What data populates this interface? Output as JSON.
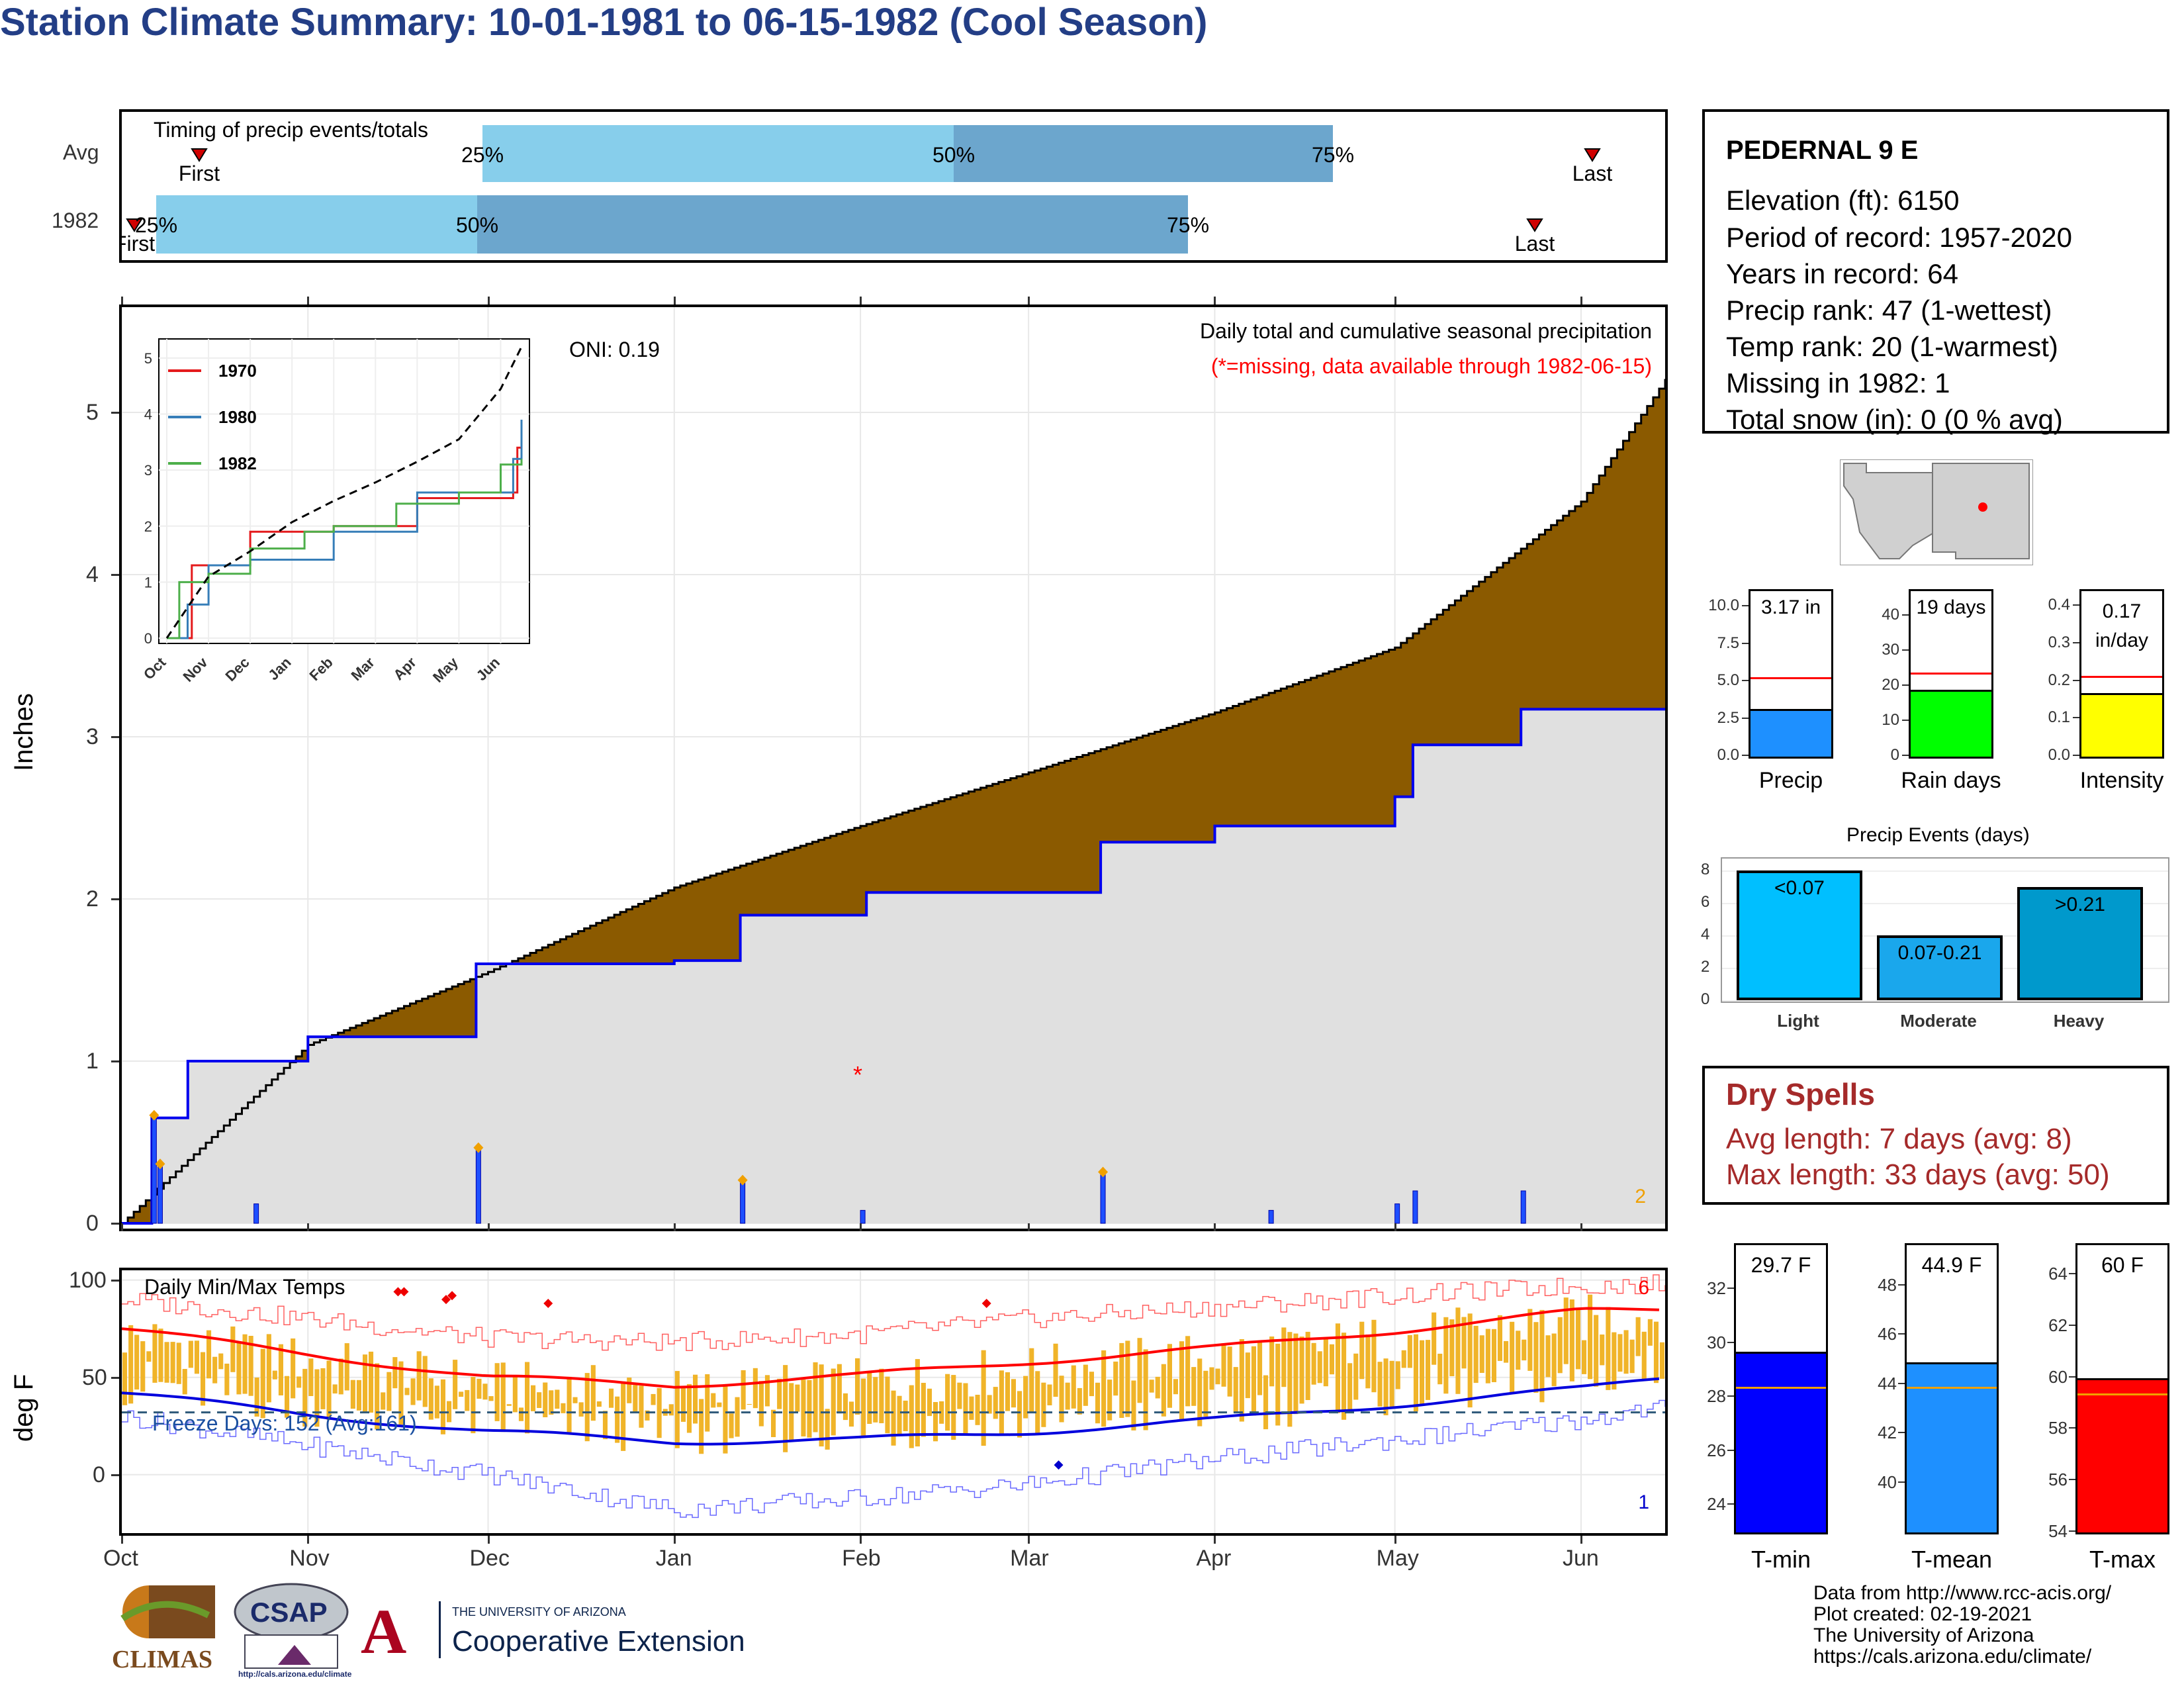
{
  "title": "Station Climate Summary: 10-01-1981 to 06-15-1982 (Cool Season)",
  "timing": {
    "label": "Timing of precip events/totals",
    "rows": [
      "Avg",
      "1982"
    ],
    "avg": {
      "first": "First",
      "last": "Last",
      "p25": "25%",
      "p50": "50%",
      "p75": "75%"
    },
    "y1982": {
      "first": "First",
      "last": "Last",
      "p25": "25%",
      "p50": "50%",
      "p75": "75%"
    }
  },
  "colors": {
    "light_blue": "#87ceeb",
    "mid_blue": "#6ca6cd",
    "brown": "#8b5a00",
    "green": "#008000",
    "gray": "#e0e0e0",
    "orange": "#f0b429",
    "navy": "#233e86",
    "dry_red": "#a52a2a"
  },
  "precip_panel": {
    "ylabel": "Inches",
    "yticks": [
      "0",
      "1",
      "2",
      "3",
      "4",
      "5"
    ],
    "oni": "ONI: 0.19",
    "legend_title": "Daily total and cumulative seasonal precipitation",
    "missing_note": "(*=missing, data available through 1982-06-15)",
    "missing_marker": "*",
    "count_label": "2"
  },
  "inset": {
    "yticks": [
      "0",
      "1",
      "2",
      "3",
      "4",
      "5"
    ],
    "months": [
      "Oct",
      "Nov",
      "Dec",
      "Jan",
      "Feb",
      "Mar",
      "Apr",
      "May",
      "Jun"
    ],
    "legend": [
      {
        "name": "1970",
        "color": "#e41a1c"
      },
      {
        "name": "1980",
        "color": "#377eb8"
      },
      {
        "name": "1982",
        "color": "#4daf4a"
      }
    ]
  },
  "temp_panel": {
    "ylabel": "deg F",
    "label": "Daily Min/Max Temps",
    "freeze": "Freeze Days: 152 (Avg:161)",
    "yticks": [
      "0",
      "50",
      "100"
    ],
    "count_top": "6",
    "count_bottom": "1"
  },
  "months": [
    "Oct",
    "Nov",
    "Dec",
    "Jan",
    "Feb",
    "Mar",
    "Apr",
    "May",
    "Jun"
  ],
  "station": {
    "name": "PEDERNAL 9 E",
    "lines": [
      "Elevation (ft): 6150",
      "Period of record: 1957-2020",
      "Years in record: 64",
      "Precip rank: 47 (1-wettest)",
      "Temp rank: 20 (1-warmest)",
      "Missing in 1982: 1",
      "Total snow (in): 0 (0 % avg)"
    ]
  },
  "mini_bars": [
    {
      "label": "Precip",
      "value_text": "3.17 in",
      "value": 3.17,
      "avg": 5.3,
      "max": 10.8,
      "ticks": [
        "0.0",
        "2.5",
        "5.0",
        "7.5",
        "10.0"
      ],
      "tick_vals": [
        0,
        2.5,
        5,
        7.5,
        10
      ],
      "color": "#1e90ff"
    },
    {
      "label": "Rain days",
      "value_text": "19 days",
      "value": 19,
      "avg": 24,
      "max": 46,
      "ticks": [
        "0",
        "10",
        "20",
        "30",
        "40"
      ],
      "tick_vals": [
        0,
        10,
        20,
        30,
        40
      ],
      "color": "#00ff00"
    },
    {
      "label": "Intensity",
      "value_text": "0.17\nin/day",
      "value_line1": "0.17",
      "value_line2": "in/day",
      "value": 0.17,
      "avg": 0.215,
      "max": 0.43,
      "ticks": [
        "0.0",
        "0.1",
        "0.2",
        "0.3",
        "0.4"
      ],
      "tick_vals": [
        0,
        0.1,
        0.2,
        0.3,
        0.4
      ],
      "color": "#ffff00"
    }
  ],
  "precip_events": {
    "title": "Precip Events (days)",
    "yticks": [
      "0",
      "2",
      "4",
      "6",
      "8"
    ],
    "bars": [
      {
        "label": "Light",
        "range": "<0.07",
        "value": 8,
        "color": "#00bfff"
      },
      {
        "label": "Moderate",
        "range": "0.07-0.21",
        "value": 4,
        "color": "#1aa7ec"
      },
      {
        "label": "Heavy",
        "range": ">0.21",
        "value": 7,
        "color": "#0099cc"
      }
    ]
  },
  "dry_spells": {
    "title": "Dry Spells",
    "avg_length": "Avg length: 7 days (avg: 8)",
    "max_length": "Max length: 33 days (avg: 50)"
  },
  "temp_bars": [
    {
      "label": "T-min",
      "value_text": "29.7 F",
      "value": 29.7,
      "avg": 28.4,
      "min": 23,
      "max": 33.5,
      "ticks": [
        "24",
        "26",
        "28",
        "30",
        "32"
      ],
      "tick_vals": [
        24,
        26,
        28,
        30,
        32
      ],
      "color": "#0000ff"
    },
    {
      "label": "T-mean",
      "value_text": "44.9 F",
      "value": 44.9,
      "avg": 43.9,
      "min": 38,
      "max": 49.5,
      "ticks": [
        "40",
        "42",
        "44",
        "46",
        "48"
      ],
      "tick_vals": [
        40,
        42,
        44,
        46,
        48
      ],
      "color": "#1e90ff"
    },
    {
      "label": "T-max",
      "value_text": "60 F",
      "value": 60.0,
      "avg": 59.4,
      "min": 54,
      "max": 65,
      "ticks": [
        "54",
        "56",
        "58",
        "60",
        "62",
        "64"
      ],
      "tick_vals": [
        54,
        56,
        58,
        60,
        62,
        64
      ],
      "color": "#ff0000"
    }
  ],
  "footer": {
    "lines": [
      "Data from http://www.rcc-acis.org/",
      "Plot created: 02-19-2021",
      "The University of Arizona",
      "https://cals.arizona.edu/climate/"
    ]
  },
  "logos": {
    "climas": "CLIMAS",
    "csap": "CSAP",
    "csap_url": "http://cals.arizona.edu/climate",
    "ua_small": "THE UNIVERSITY OF ARIZONA",
    "ua_big": "Cooperative Extension",
    "ua_letter": "A"
  },
  "chart_data": [
    {
      "type": "area",
      "title": "Daily total and cumulative seasonal precipitation",
      "ylabel": "Inches",
      "ylim": [
        0,
        5.6
      ],
      "x_range": [
        "1981-10-01",
        "1982-06-15"
      ],
      "series": [
        {
          "name": "1982",
          "points": [
            [
              "1981-10-01",
              0.0
            ],
            [
              "1981-10-06",
              0.65
            ],
            [
              "1981-10-12",
              1.0
            ],
            [
              "1981-11-01",
              1.15
            ],
            [
              "1981-11-29",
              1.6
            ],
            [
              "1982-01-01",
              1.62
            ],
            [
              "1982-01-12",
              1.9
            ],
            [
              "1982-02-02",
              2.04
            ],
            [
              "1982-03-13",
              2.35
            ],
            [
              "1982-04-01",
              2.45
            ],
            [
              "1982-05-01",
              2.63
            ],
            [
              "1982-05-04",
              2.95
            ],
            [
              "1982-05-22",
              3.17
            ],
            [
              "1982-06-15",
              3.17
            ]
          ]
        },
        {
          "name": "Avg",
          "points": [
            [
              "1981-10-01",
              0.0
            ],
            [
              "1981-11-01",
              1.1
            ],
            [
              "1981-12-01",
              1.55
            ],
            [
              "1982-01-01",
              2.07
            ],
            [
              "1982-02-01",
              2.45
            ],
            [
              "1982-03-01",
              2.78
            ],
            [
              "1982-04-01",
              3.15
            ],
            [
              "1982-05-01",
              3.55
            ],
            [
              "1982-06-01",
              4.45
            ],
            [
              "1982-06-15",
              5.2
            ]
          ]
        }
      ],
      "daily": [
        [
          "1981-10-06",
          0.65
        ],
        [
          "1981-10-07",
          0.35
        ],
        [
          "1981-10-23",
          0.12
        ],
        [
          "1981-11-29",
          0.45
        ],
        [
          "1982-01-12",
          0.25
        ],
        [
          "1982-02-01",
          0.08
        ],
        [
          "1982-03-13",
          0.3
        ],
        [
          "1982-04-10",
          0.08
        ],
        [
          "1982-05-01",
          0.12
        ],
        [
          "1982-05-04",
          0.2
        ],
        [
          "1982-05-22",
          0.2
        ]
      ],
      "missing": [
        "1982-02-01"
      ]
    },
    {
      "type": "line",
      "title": "Inset cumulative precipitation",
      "ylim": [
        0,
        5
      ],
      "series": [
        {
          "name": "1970",
          "points": [
            [
              0,
              0
            ],
            [
              0.6,
              1.3
            ],
            [
              2,
              1.9
            ],
            [
              4,
              2.0
            ],
            [
              6,
              2.5
            ],
            [
              8.3,
              2.6
            ],
            [
              8.4,
              3.4
            ],
            [
              8.5,
              3.7
            ]
          ]
        },
        {
          "name": "1980",
          "points": [
            [
              0,
              0
            ],
            [
              0.5,
              0.6
            ],
            [
              1,
              1.3
            ],
            [
              2,
              1.4
            ],
            [
              4,
              1.9
            ],
            [
              6,
              2.6
            ],
            [
              8.3,
              3.2
            ],
            [
              8.5,
              3.9
            ]
          ]
        },
        {
          "name": "1982",
          "points": [
            [
              0,
              0
            ],
            [
              0.3,
              1.0
            ],
            [
              1,
              1.15
            ],
            [
              2,
              1.6
            ],
            [
              3.3,
              1.9
            ],
            [
              4,
              2.0
            ],
            [
              5.5,
              2.4
            ],
            [
              7,
              2.6
            ],
            [
              8,
              3.1
            ],
            [
              8.5,
              3.2
            ]
          ]
        },
        {
          "name": "Avg",
          "points": [
            [
              0,
              0
            ],
            [
              1,
              1.1
            ],
            [
              2,
              1.55
            ],
            [
              3,
              2.07
            ],
            [
              4,
              2.45
            ],
            [
              5,
              2.78
            ],
            [
              6,
              3.15
            ],
            [
              7,
              3.55
            ],
            [
              8,
              4.45
            ],
            [
              8.5,
              5.2
            ]
          ]
        }
      ]
    },
    {
      "type": "line",
      "title": "Daily Min/Max Temps",
      "ylabel": "deg F",
      "ylim": [
        -30,
        105
      ],
      "series": [
        {
          "name": "Avg max",
          "points": [
            [
              0,
              75
            ],
            [
              31,
              62
            ],
            [
              61,
              50
            ],
            [
              92,
              46
            ],
            [
              123,
              51
            ],
            [
              151,
              58
            ],
            [
              182,
              65
            ],
            [
              212,
              74
            ],
            [
              243,
              84
            ],
            [
              257,
              85
            ]
          ]
        },
        {
          "name": "Avg min",
          "points": [
            [
              0,
              42
            ],
            [
              31,
              31
            ],
            [
              61,
              22
            ],
            [
              92,
              17
            ],
            [
              123,
              18
            ],
            [
              151,
              22
            ],
            [
              182,
              28
            ],
            [
              212,
              36
            ],
            [
              243,
              44
            ],
            [
              257,
              50
            ]
          ]
        },
        {
          "name": "Record max",
          "points": [
            [
              0,
              90
            ],
            [
              31,
              80
            ],
            [
              61,
              70
            ],
            [
              92,
              68
            ],
            [
              123,
              72
            ],
            [
              151,
              80
            ],
            [
              182,
              86
            ],
            [
              212,
              92
            ],
            [
              243,
              97
            ],
            [
              257,
              98
            ]
          ]
        },
        {
          "name": "Record min",
          "points": [
            [
              0,
              30
            ],
            [
              31,
              15
            ],
            [
              61,
              0
            ],
            [
              92,
              -18
            ],
            [
              123,
              -12
            ],
            [
              151,
              -5
            ],
            [
              182,
              8
            ],
            [
              212,
              18
            ],
            [
              243,
              28
            ],
            [
              257,
              35
            ]
          ]
        }
      ],
      "freeze_line": 32
    }
  ]
}
